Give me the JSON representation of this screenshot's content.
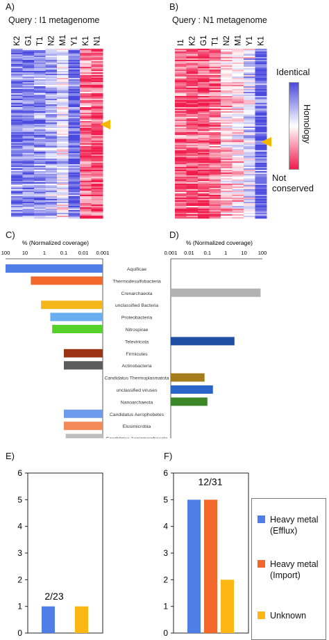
{
  "heatmaps": [
    {
      "panel_label": "A)",
      "title": "Query : I1 metagenome",
      "columns": [
        "K2",
        "G1",
        "T1",
        "N2",
        "M1",
        "Y1",
        "K1",
        "N1"
      ],
      "column_bias": [
        0.82,
        0.8,
        0.76,
        0.7,
        0.55,
        0.88,
        0.18,
        0.12
      ],
      "marker": true
    },
    {
      "panel_label": "B)",
      "title": "Query : N1 metagenome",
      "columns": [
        "I1",
        "K2",
        "G1",
        "T1",
        "N2",
        "M1",
        "Y1",
        "K1"
      ],
      "column_bias": [
        0.15,
        0.12,
        0.1,
        0.2,
        0.35,
        0.42,
        0.58,
        0.9
      ],
      "marker": true
    }
  ],
  "colorbar": {
    "top_label": "Identical",
    "axis_label": "Homology",
    "bottom_label": "Not conserved",
    "colors": [
      "#4a4adf",
      "#ffffff",
      "#f01c4c"
    ]
  },
  "taxa": {
    "panel_c_label": "C)",
    "panel_d_label": "D)",
    "axis_title": "% (Normalized coverage)",
    "c_ticks": [
      "100",
      "10",
      "1",
      "0.1",
      "0.01",
      "0.001"
    ],
    "d_ticks": [
      "0.001",
      "0.01",
      "0.1",
      "1",
      "10",
      "100"
    ],
    "categories": [
      "Aquificae",
      "Thermodesulfobacteria",
      "Crenarchaeota",
      "unclassified Bacteria",
      "Proteobacteria",
      "Nitrospirae",
      "Televiricota",
      "Firmicutes",
      "Actinobacteria",
      "Candidatus Thermoplasmatota",
      "unclassified viruses",
      "Nanoarchaeota",
      "Candidatus Aerophobetes",
      "Elusimicrobia",
      "Candidatus Aenigmarchaeota"
    ],
    "c_values": [
      100,
      5,
      null,
      1.5,
      0.5,
      0.4,
      null,
      0.1,
      0.1,
      null,
      null,
      null,
      0.1,
      0.1,
      0.08
    ],
    "d_values": [
      null,
      null,
      80,
      null,
      null,
      null,
      3,
      null,
      null,
      0.07,
      0.2,
      0.1,
      null,
      null,
      null
    ],
    "c_colors": [
      "#4f7fe6",
      "#f2682a",
      null,
      "#f4b71b",
      "#6aaef2",
      "#55d12a",
      null,
      "#9b3314",
      "#5c5c5c",
      null,
      null,
      null,
      "#6f9bec",
      "#f4895a",
      "#bfbfbf"
    ],
    "d_colors": [
      null,
      null,
      "#b2b2b2",
      null,
      null,
      null,
      "#1f4fa3",
      null,
      null,
      "#a57c1b",
      "#2a63c9",
      "#3b8727",
      null,
      null,
      null
    ]
  },
  "chart_data": [
    {
      "panel_label": "E)",
      "type": "bar",
      "annotation": "2/23",
      "ylim": [
        0,
        6
      ],
      "yticks": [
        0,
        1,
        2,
        3,
        4,
        5,
        6
      ],
      "series": [
        {
          "name": "Heavy metal (Efflux)",
          "values": [
            1
          ],
          "color": "#4f7fe6"
        },
        {
          "name": "Heavy metal (Import)",
          "values": [
            0
          ],
          "color": "#f2682a"
        },
        {
          "name": "Unknown",
          "values": [
            1
          ],
          "color": "#fdb714"
        }
      ]
    },
    {
      "panel_label": "F)",
      "type": "bar",
      "annotation": "12/31",
      "ylim": [
        0,
        6
      ],
      "yticks": [
        0,
        1,
        2,
        3,
        4,
        5,
        6
      ],
      "series": [
        {
          "name": "Heavy metal (Efflux)",
          "values": [
            5
          ],
          "color": "#4f7fe6"
        },
        {
          "name": "Heavy metal (Import)",
          "values": [
            5
          ],
          "color": "#f2682a"
        },
        {
          "name": "Unknown",
          "values": [
            2
          ],
          "color": "#fdb714"
        }
      ]
    }
  ],
  "legend": [
    {
      "line1": "Heavy metal",
      "line2": "(Efflux)",
      "color": "#4f7fe6"
    },
    {
      "line1": "Heavy metal",
      "line2": "(Import)",
      "color": "#f2682a"
    },
    {
      "line1": "Unknown",
      "line2": "",
      "color": "#fdb714"
    }
  ]
}
